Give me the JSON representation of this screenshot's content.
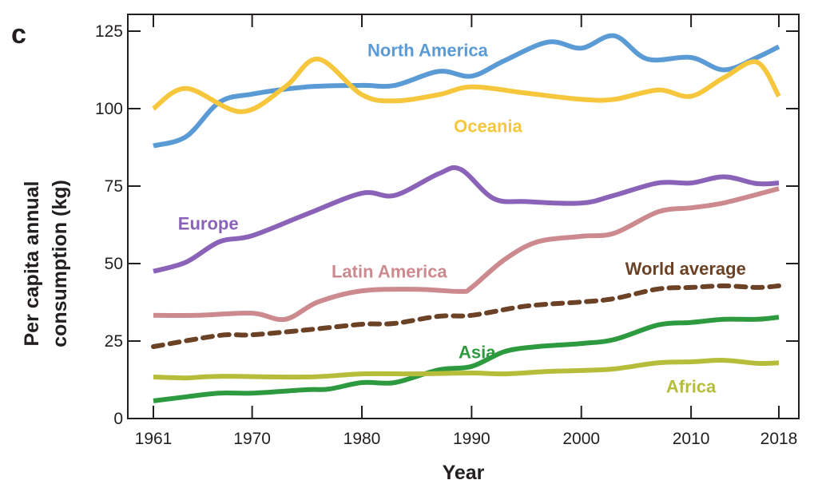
{
  "chart_data": {
    "type": "line",
    "panel_label": "c",
    "title": "",
    "xlabel": "Year",
    "ylabel": "Per capita annual consumption (kg)",
    "ylabel_lines": [
      "Per capita annual",
      "consumption (kg)"
    ],
    "xlim": [
      1961,
      2018
    ],
    "ylim": [
      0,
      125
    ],
    "xticks": [
      1961,
      1970,
      1980,
      1990,
      2000,
      2010,
      2018
    ],
    "xtick_labels": [
      "1961",
      "1970",
      "1980",
      "1990",
      "2000",
      "2010",
      "2018"
    ],
    "yticks": [
      0,
      25,
      50,
      75,
      100,
      125
    ],
    "ytick_labels": [
      "0",
      "25",
      "50",
      "75",
      "100",
      "125"
    ],
    "grid": false,
    "legend": "inline labels",
    "series": [
      {
        "name": "North America",
        "color": "#5b9bd5",
        "dashed": false,
        "label_anchor": {
          "x": 1986,
          "y": 119
        },
        "x": [
          1961,
          1964,
          1967,
          1970,
          1975,
          1980,
          1983,
          1987,
          1990,
          1993,
          1997,
          2000,
          2003,
          2006,
          2010,
          2013,
          2016,
          2018
        ],
        "values": [
          88,
          91,
          102,
          104.7,
          107,
          107.5,
          107.5,
          112,
          110.5,
          115.5,
          121.5,
          119.5,
          123.5,
          116,
          116.5,
          112.5,
          116.5,
          120
        ]
      },
      {
        "name": "Oceania",
        "color": "#f6c73c",
        "dashed": false,
        "label_anchor": {
          "x": 1991.5,
          "y": 94.5
        },
        "x": [
          1961,
          1964,
          1969,
          1973,
          1976,
          1980,
          1983,
          1987,
          1990,
          1995,
          2000,
          2003,
          2007,
          2010,
          2013,
          2016,
          2018
        ],
        "values": [
          100,
          106.5,
          99,
          107,
          116,
          104.5,
          102.5,
          104.5,
          107,
          105,
          103,
          103,
          106,
          104,
          110,
          115,
          104
        ]
      },
      {
        "name": "Europe",
        "color": "#8a63b8",
        "dashed": false,
        "label_anchor": {
          "x": 1966,
          "y": 63
        },
        "x": [
          1961,
          1964,
          1967,
          1970,
          1975,
          1980,
          1983,
          1987,
          1989,
          1992,
          1995,
          2000,
          2003,
          2007,
          2010,
          2013,
          2016,
          2018
        ],
        "values": [
          47.5,
          50.5,
          57,
          59,
          66,
          72.7,
          72,
          79,
          80.4,
          71,
          70,
          69.5,
          72,
          76,
          76,
          78,
          75.8,
          76
        ]
      },
      {
        "name": "Latin America",
        "color": "#cc8a8e",
        "dashed": false,
        "label_anchor": {
          "x": 1982.5,
          "y": 47.5
        },
        "x": [
          1961,
          1965,
          1970,
          1973,
          1976,
          1980,
          1985,
          1989,
          1990,
          1993,
          1996,
          2000,
          2003,
          2007,
          2010,
          2013,
          2018
        ],
        "values": [
          33.3,
          33.3,
          34,
          32,
          37.6,
          41.2,
          41.7,
          41,
          42.3,
          51.3,
          57,
          58.8,
          59.8,
          66.7,
          68,
          69.6,
          74.2
        ]
      },
      {
        "name": "World average",
        "color": "#6b4226",
        "dashed": true,
        "label_anchor": {
          "x": 2009.5,
          "y": 48.5
        },
        "x": [
          1961,
          1967,
          1970,
          1975,
          1980,
          1983,
          1987,
          1990,
          1995,
          2000,
          2003,
          2007,
          2010,
          2013,
          2016,
          2018
        ],
        "values": [
          23.2,
          26.8,
          27,
          28.6,
          30.4,
          30.7,
          33,
          33.3,
          36.3,
          37.6,
          38.7,
          41.8,
          42.3,
          42.8,
          42.3,
          42.8
        ]
      },
      {
        "name": "Asia",
        "color": "#2e9a40",
        "dashed": false,
        "label_anchor": {
          "x": 1990.5,
          "y": 21.5
        },
        "x": [
          1961,
          1964,
          1967,
          1970,
          1975,
          1977,
          1980,
          1983,
          1987,
          1990,
          1993,
          1996,
          2000,
          2003,
          2007,
          2010,
          2013,
          2016,
          2018
        ],
        "values": [
          5.7,
          7,
          8.2,
          8.2,
          9.3,
          9.5,
          11.6,
          11.6,
          15.7,
          16.8,
          21.6,
          23.2,
          24.2,
          25.5,
          30.2,
          31,
          32,
          32,
          32.7
        ]
      },
      {
        "name": "Africa",
        "color": "#b5bd3a",
        "dashed": false,
        "label_anchor": {
          "x": 2010,
          "y": 10.5
        },
        "x": [
          1961,
          1964,
          1967,
          1975,
          1980,
          1985,
          1990,
          1993,
          1997,
          2000,
          2003,
          2007,
          2010,
          2013,
          2016,
          2018
        ],
        "values": [
          13.4,
          13.1,
          13.6,
          13.4,
          14.4,
          14.4,
          14.7,
          14.4,
          15.2,
          15.5,
          16,
          18,
          18.3,
          18.8,
          17.8,
          18
        ]
      }
    ]
  }
}
